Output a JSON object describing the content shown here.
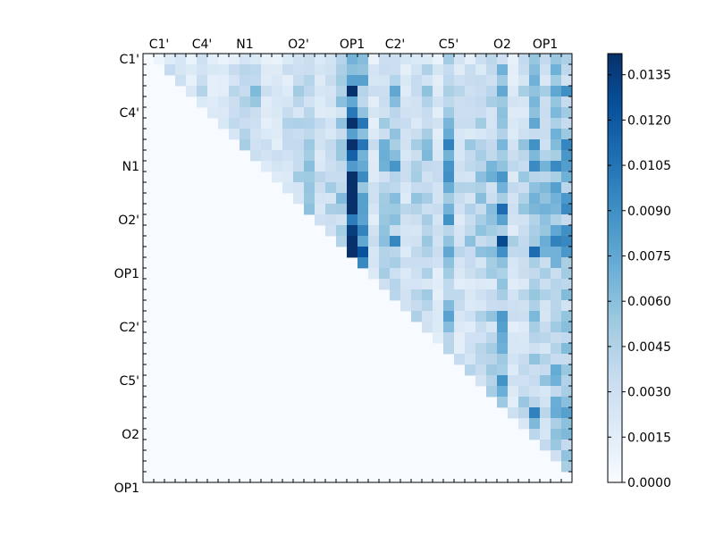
{
  "chart_data": {
    "type": "heatmap",
    "title": "",
    "xlabel": "",
    "ylabel": "",
    "matrix_size": 40,
    "upper_triangle_only": true,
    "x_ticks": [
      {
        "index": 1,
        "label": "C1'"
      },
      {
        "index": 5,
        "label": "C4'"
      },
      {
        "index": 9,
        "label": "N1"
      },
      {
        "index": 14,
        "label": "O2'"
      },
      {
        "index": 19,
        "label": "OP1"
      },
      {
        "index": 23,
        "label": "C2'"
      },
      {
        "index": 28,
        "label": "C5'"
      },
      {
        "index": 33,
        "label": "O2"
      },
      {
        "index": 37,
        "label": "OP1"
      }
    ],
    "y_ticks": [
      {
        "index": 0,
        "label": "C1'"
      },
      {
        "index": 5,
        "label": "C4'"
      },
      {
        "index": 10,
        "label": "N1"
      },
      {
        "index": 15,
        "label": "O2'"
      },
      {
        "index": 20,
        "label": "OP1"
      },
      {
        "index": 25,
        "label": "C2'"
      },
      {
        "index": 30,
        "label": "C5'"
      },
      {
        "index": 35,
        "label": "O2"
      },
      {
        "index": 40,
        "label": "OP1"
      }
    ],
    "colormap": "Blues",
    "value_range": [
      0.0,
      0.0142
    ],
    "colorbar_ticks": [
      "0.0000",
      "0.0015",
      "0.0030",
      "0.0045",
      "0.0060",
      "0.0075",
      "0.0090",
      "0.0105",
      "0.0120",
      "0.0135"
    ],
    "colorbar_tick_values": [
      0.0,
      0.0015,
      0.003,
      0.0045,
      0.006,
      0.0075,
      0.009,
      0.0105,
      0.012,
      0.0135
    ],
    "column_profile": [
      0.0,
      0.001,
      0.0045,
      0.0035,
      0.0025,
      0.0045,
      0.002,
      0.002,
      0.0035,
      0.0055,
      0.005,
      0.0025,
      0.0025,
      0.0035,
      0.004,
      0.0045,
      0.003,
      0.004,
      0.0055,
      0.0125,
      0.008,
      0.0025,
      0.005,
      0.006,
      0.003,
      0.004,
      0.005,
      0.0025,
      0.0075,
      0.0035,
      0.004,
      0.0045,
      0.005,
      0.0085,
      0.003,
      0.0045,
      0.007,
      0.005,
      0.0065,
      0.007
    ],
    "row_profile": [
      0.6,
      0.8,
      0.7,
      0.9,
      0.8,
      0.7,
      0.9,
      0.8,
      1.0,
      1.0,
      1.0,
      1.0,
      0.9,
      1.0,
      1.0,
      0.9,
      0.9,
      1.2,
      1.1,
      1.0,
      0.8,
      0.6,
      0.8,
      0.7,
      0.8,
      0.7,
      0.6,
      0.7,
      0.7,
      0.8,
      0.8,
      0.7,
      0.9,
      1.2,
      0.8,
      0.8,
      0.9,
      0.6,
      0.5,
      0.4
    ]
  }
}
